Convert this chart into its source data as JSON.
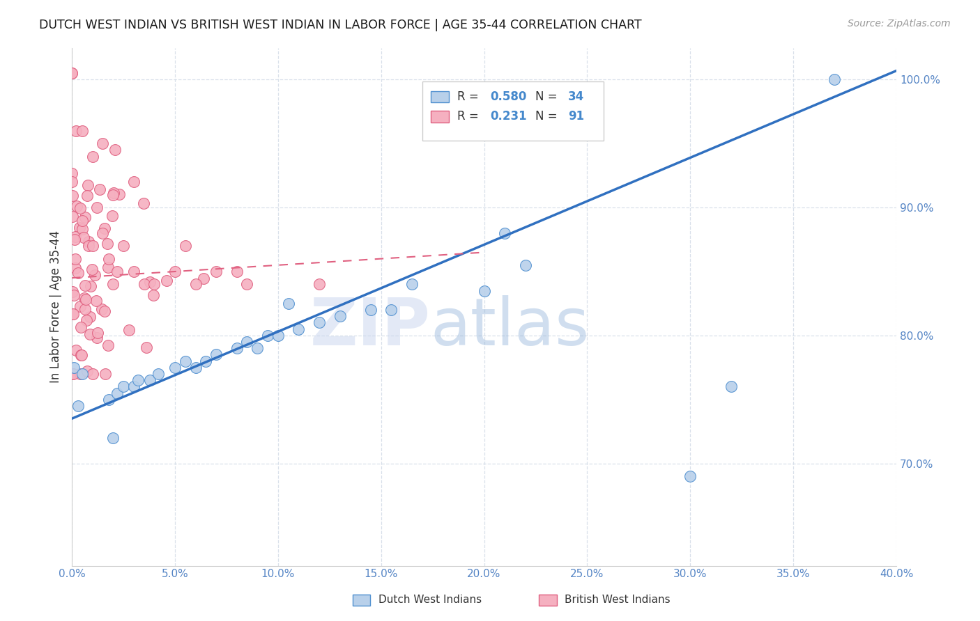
{
  "title": "DUTCH WEST INDIAN VS BRITISH WEST INDIAN IN LABOR FORCE | AGE 35-44 CORRELATION CHART",
  "source": "Source: ZipAtlas.com",
  "ylabel": "In Labor Force | Age 35-44",
  "xlim": [
    0.0,
    0.4
  ],
  "ylim": [
    0.62,
    1.025
  ],
  "xticks": [
    0.0,
    0.05,
    0.1,
    0.15,
    0.2,
    0.25,
    0.3,
    0.35,
    0.4
  ],
  "yticks_right": [
    0.7,
    0.8,
    0.9,
    1.0
  ],
  "blue_R": 0.58,
  "blue_N": 34,
  "pink_R": 0.231,
  "pink_N": 91,
  "blue_label": "Dutch West Indians",
  "pink_label": "British West Indians",
  "blue_color": "#b8d0ea",
  "pink_color": "#f5b0c0",
  "blue_edge_color": "#5090d0",
  "pink_edge_color": "#e06080",
  "blue_line_color": "#3070c0",
  "pink_line_color": "#e06080",
  "grid_color": "#d5dde8",
  "blue_line_intercept": 0.735,
  "blue_line_slope": 0.68,
  "pink_line_intercept": 0.845,
  "pink_line_slope": 0.1,
  "pink_line_x_end": 0.2
}
